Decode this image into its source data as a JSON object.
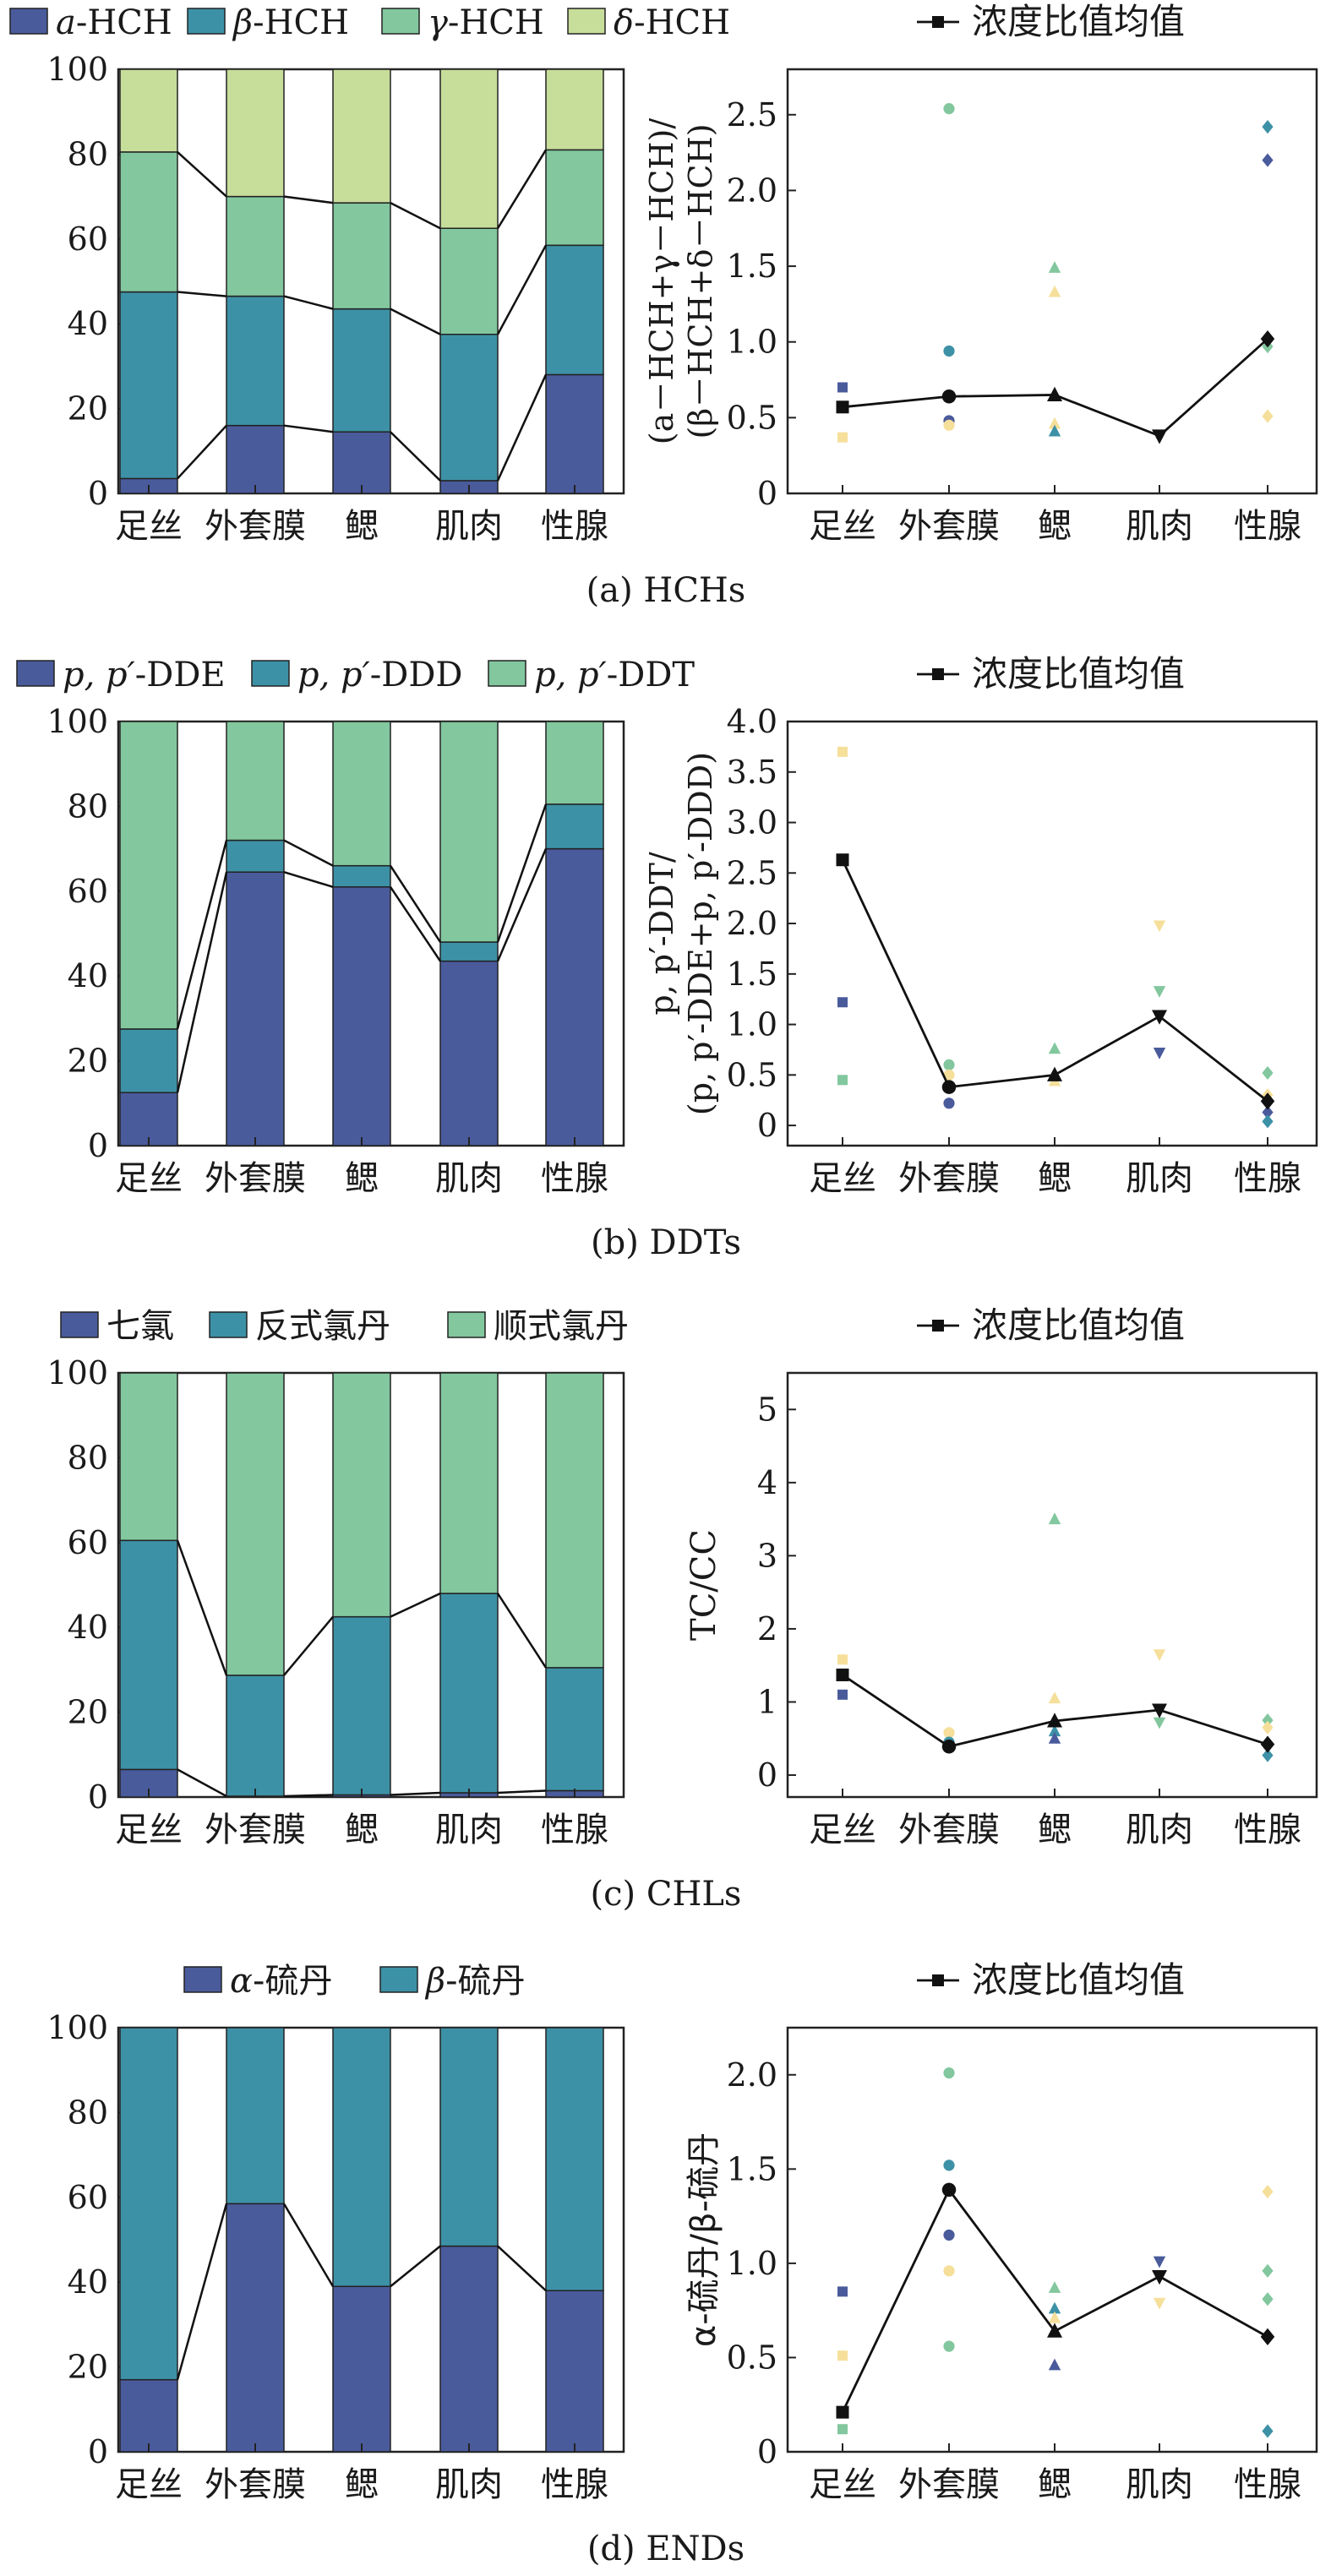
{
  "colors": {
    "c1": "#4a5b9c",
    "c2": "#3d91a6",
    "c3": "#82c79e",
    "c4": "#c7dd9a",
    "c5": "#f5df9a",
    "line": "#111111"
  },
  "chart_data": [
    {
      "type": "bar",
      "stacked": true,
      "percent": true,
      "caption": "(a) HCHs",
      "categories": [
        "足丝",
        "外套膜",
        "鳃",
        "肌肉",
        "性腺"
      ],
      "ylim": [
        0,
        100
      ],
      "yticks": [
        "0",
        "20",
        "40",
        "60",
        "80",
        "100"
      ],
      "legend_placement": "top",
      "series": [
        {
          "name": "a-HCH",
          "name_main": "a",
          "name_suffix": "-HCH",
          "color": "c1",
          "values": [
            3.5,
            16,
            14.5,
            3,
            28
          ]
        },
        {
          "name": "β-HCH",
          "name_main": "β",
          "name_suffix": "-HCH",
          "color": "c2",
          "values": [
            44,
            30.5,
            29,
            34.5,
            30.5
          ]
        },
        {
          "name": "γ-HCH",
          "name_main": "γ",
          "name_suffix": "-HCH",
          "color": "c3",
          "values": [
            33,
            23.5,
            25,
            25,
            22.5
          ]
        },
        {
          "name": "δ-HCH",
          "name_main": "δ",
          "name_suffix": "-HCH",
          "color": "c4",
          "values": [
            19.5,
            30,
            31.5,
            37.5,
            19
          ]
        }
      ]
    },
    {
      "type": "scatter",
      "with_mean_line": true,
      "legend": "浓度比值均值",
      "legend_placement": "top",
      "ylabel_line1": "(a－HCH+γ－HCH)/",
      "ylabel_line2": "(β－HCH+δ－HCH)",
      "categories": [
        "足丝",
        "外套膜",
        "鳃",
        "肌肉",
        "性腺"
      ],
      "ylim": [
        0,
        2.8
      ],
      "yticks": [
        "0",
        "0.5",
        "1.0",
        "1.5",
        "2.0",
        "2.5"
      ],
      "mean": [
        0.57,
        0.64,
        0.65,
        0.38,
        1.02
      ],
      "points": [
        {
          "x": 0,
          "y": 0.7,
          "color": "c1"
        },
        {
          "x": 0,
          "y": 0.37,
          "color": "c5"
        },
        {
          "x": 1,
          "y": 2.54,
          "color": "c3"
        },
        {
          "x": 1,
          "y": 0.94,
          "color": "c2"
        },
        {
          "x": 1,
          "y": 0.48,
          "color": "c1"
        },
        {
          "x": 1,
          "y": 0.45,
          "color": "c5"
        },
        {
          "x": 2,
          "y": 1.49,
          "color": "c3"
        },
        {
          "x": 2,
          "y": 1.33,
          "color": "c5"
        },
        {
          "x": 2,
          "y": 0.46,
          "color": "c5"
        },
        {
          "x": 2,
          "y": 0.41,
          "color": "c2"
        },
        {
          "x": 3,
          "y": 0.38,
          "color": "c1"
        },
        {
          "x": 4,
          "y": 2.42,
          "color": "c2"
        },
        {
          "x": 4,
          "y": 2.2,
          "color": "c1"
        },
        {
          "x": 4,
          "y": 0.97,
          "color": "c3"
        },
        {
          "x": 4,
          "y": 0.51,
          "color": "c5"
        }
      ]
    },
    {
      "type": "bar",
      "stacked": true,
      "percent": true,
      "caption": "(b) DDTs",
      "categories": [
        "足丝",
        "外套膜",
        "鳃",
        "肌肉",
        "性腺"
      ],
      "ylim": [
        0,
        100
      ],
      "yticks": [
        "0",
        "20",
        "40",
        "60",
        "80",
        "100"
      ],
      "legend_placement": "top",
      "series": [
        {
          "name": "p, p′-DDE",
          "name_main": "p, p′",
          "name_suffix": "-DDE",
          "color": "c1",
          "values": [
            12.5,
            64.5,
            61,
            43.5,
            70
          ]
        },
        {
          "name": "p, p′-DDD",
          "name_main": "p, p′",
          "name_suffix": "-DDD",
          "color": "c2",
          "values": [
            15,
            7.5,
            5,
            4.5,
            10.5
          ]
        },
        {
          "name": "p, p′-DDT",
          "name_main": "p, p′",
          "name_suffix": "-DDT",
          "color": "c3",
          "values": [
            72.5,
            28,
            34,
            52,
            19.5
          ]
        }
      ]
    },
    {
      "type": "scatter",
      "with_mean_line": true,
      "legend": "浓度比值均值",
      "legend_placement": "top",
      "ylabel_line1": "p, p′-DDT/",
      "ylabel_line2": "(p, p′-DDE+p, p′-DDD)",
      "categories": [
        "足丝",
        "外套膜",
        "鳃",
        "肌肉",
        "性腺"
      ],
      "ylim": [
        -0.2,
        4.0
      ],
      "yticks": [
        "0",
        "0.5",
        "1.0",
        "1.5",
        "2.0",
        "2.5",
        "3.0",
        "3.5",
        "4.0"
      ],
      "mean": [
        2.63,
        0.38,
        0.5,
        1.08,
        0.24
      ],
      "points": [
        {
          "x": 0,
          "y": 3.7,
          "color": "c5"
        },
        {
          "x": 0,
          "y": 1.22,
          "color": "c1"
        },
        {
          "x": 0,
          "y": 0.45,
          "color": "c3"
        },
        {
          "x": 1,
          "y": 0.6,
          "color": "c3"
        },
        {
          "x": 1,
          "y": 0.5,
          "color": "c5"
        },
        {
          "x": 1,
          "y": 0.22,
          "color": "c1"
        },
        {
          "x": 2,
          "y": 0.76,
          "color": "c3"
        },
        {
          "x": 2,
          "y": 0.44,
          "color": "c5"
        },
        {
          "x": 3,
          "y": 1.98,
          "color": "c5"
        },
        {
          "x": 3,
          "y": 1.33,
          "color": "c3"
        },
        {
          "x": 3,
          "y": 0.72,
          "color": "c1"
        },
        {
          "x": 4,
          "y": 0.52,
          "color": "c3"
        },
        {
          "x": 4,
          "y": 0.3,
          "color": "c5"
        },
        {
          "x": 4,
          "y": 0.13,
          "color": "c1"
        },
        {
          "x": 4,
          "y": 0.04,
          "color": "c2"
        }
      ]
    },
    {
      "type": "bar",
      "stacked": true,
      "percent": true,
      "caption": "(c) CHLs",
      "categories": [
        "足丝",
        "外套膜",
        "鳃",
        "肌肉",
        "性腺"
      ],
      "ylim": [
        0,
        100
      ],
      "yticks": [
        "0",
        "20",
        "40",
        "60",
        "80",
        "100"
      ],
      "legend_placement": "top",
      "series": [
        {
          "name": "七氯",
          "name_main": "",
          "name_suffix": "七氯",
          "color": "c1",
          "values": [
            6.5,
            0.2,
            0.5,
            1,
            1.5
          ]
        },
        {
          "name": "反式氯丹",
          "name_main": "",
          "name_suffix": "反式氯丹",
          "color": "c2",
          "values": [
            54,
            28.5,
            42,
            47,
            29
          ]
        },
        {
          "name": "顺式氯丹",
          "name_main": "",
          "name_suffix": "顺式氯丹",
          "color": "c3",
          "values": [
            39.5,
            71.3,
            57.5,
            52,
            69.5
          ]
        }
      ]
    },
    {
      "type": "scatter",
      "with_mean_line": true,
      "legend": "浓度比值均值",
      "legend_placement": "top",
      "ylabel_line1": "TC/CC",
      "ylabel_line2": "",
      "categories": [
        "足丝",
        "外套膜",
        "鳃",
        "肌肉",
        "性腺"
      ],
      "ylim": [
        -0.3,
        5.5
      ],
      "yticks": [
        "0",
        "1",
        "2",
        "3",
        "4",
        "5"
      ],
      "mean": [
        1.37,
        0.39,
        0.74,
        0.89,
        0.42
      ],
      "points": [
        {
          "x": 0,
          "y": 1.58,
          "color": "c5"
        },
        {
          "x": 0,
          "y": 1.1,
          "color": "c1"
        },
        {
          "x": 1,
          "y": 0.58,
          "color": "c5"
        },
        {
          "x": 1,
          "y": 0.45,
          "color": "c2"
        },
        {
          "x": 2,
          "y": 3.5,
          "color": "c3"
        },
        {
          "x": 2,
          "y": 1.05,
          "color": "c5"
        },
        {
          "x": 2,
          "y": 0.6,
          "color": "c2"
        },
        {
          "x": 2,
          "y": 0.5,
          "color": "c1"
        },
        {
          "x": 3,
          "y": 1.65,
          "color": "c5"
        },
        {
          "x": 3,
          "y": 0.72,
          "color": "c3"
        },
        {
          "x": 4,
          "y": 0.75,
          "color": "c3"
        },
        {
          "x": 4,
          "y": 0.65,
          "color": "c5"
        },
        {
          "x": 4,
          "y": 0.27,
          "color": "c2"
        }
      ]
    },
    {
      "type": "bar",
      "stacked": true,
      "percent": true,
      "caption": "(d) ENDs",
      "categories": [
        "足丝",
        "外套膜",
        "鳃",
        "肌肉",
        "性腺"
      ],
      "ylim": [
        0,
        100
      ],
      "yticks": [
        "0",
        "20",
        "40",
        "60",
        "80",
        "100"
      ],
      "legend_placement": "top",
      "series": [
        {
          "name": "α-硫丹",
          "name_main": "α",
          "name_suffix": "-硫丹",
          "color": "c1",
          "values": [
            17,
            58.5,
            39,
            48.5,
            38
          ]
        },
        {
          "name": "β-硫丹",
          "name_main": "β",
          "name_suffix": "-硫丹",
          "color": "c2",
          "values": [
            83,
            41.5,
            61,
            51.5,
            62
          ]
        }
      ]
    },
    {
      "type": "scatter",
      "with_mean_line": true,
      "legend": "浓度比值均值",
      "legend_placement": "top",
      "ylabel_line1": "α-硫丹/β-硫丹",
      "ylabel_line2": "",
      "categories": [
        "足丝",
        "外套膜",
        "鳃",
        "肌肉",
        "性腺"
      ],
      "ylim": [
        0,
        2.25
      ],
      "yticks": [
        "0",
        "0.5",
        "1.0",
        "1.5",
        "2.0"
      ],
      "mean": [
        0.21,
        1.39,
        0.64,
        0.93,
        0.61
      ],
      "points": [
        {
          "x": 0,
          "y": 0.85,
          "color": "c1"
        },
        {
          "x": 0,
          "y": 0.51,
          "color": "c5"
        },
        {
          "x": 0,
          "y": 0.12,
          "color": "c3"
        },
        {
          "x": 1,
          "y": 2.01,
          "color": "c3"
        },
        {
          "x": 1,
          "y": 1.52,
          "color": "c2"
        },
        {
          "x": 1,
          "y": 1.15,
          "color": "c1"
        },
        {
          "x": 1,
          "y": 0.96,
          "color": "c5"
        },
        {
          "x": 1,
          "y": 0.56,
          "color": "c3"
        },
        {
          "x": 2,
          "y": 0.87,
          "color": "c3"
        },
        {
          "x": 2,
          "y": 0.76,
          "color": "c2"
        },
        {
          "x": 2,
          "y": 0.71,
          "color": "c5"
        },
        {
          "x": 2,
          "y": 0.46,
          "color": "c1"
        },
        {
          "x": 3,
          "y": 1.01,
          "color": "c1"
        },
        {
          "x": 3,
          "y": 0.79,
          "color": "c5"
        },
        {
          "x": 4,
          "y": 1.38,
          "color": "c5"
        },
        {
          "x": 4,
          "y": 0.96,
          "color": "c3"
        },
        {
          "x": 4,
          "y": 0.81,
          "color": "c3"
        },
        {
          "x": 4,
          "y": 0.11,
          "color": "c2"
        }
      ]
    }
  ]
}
